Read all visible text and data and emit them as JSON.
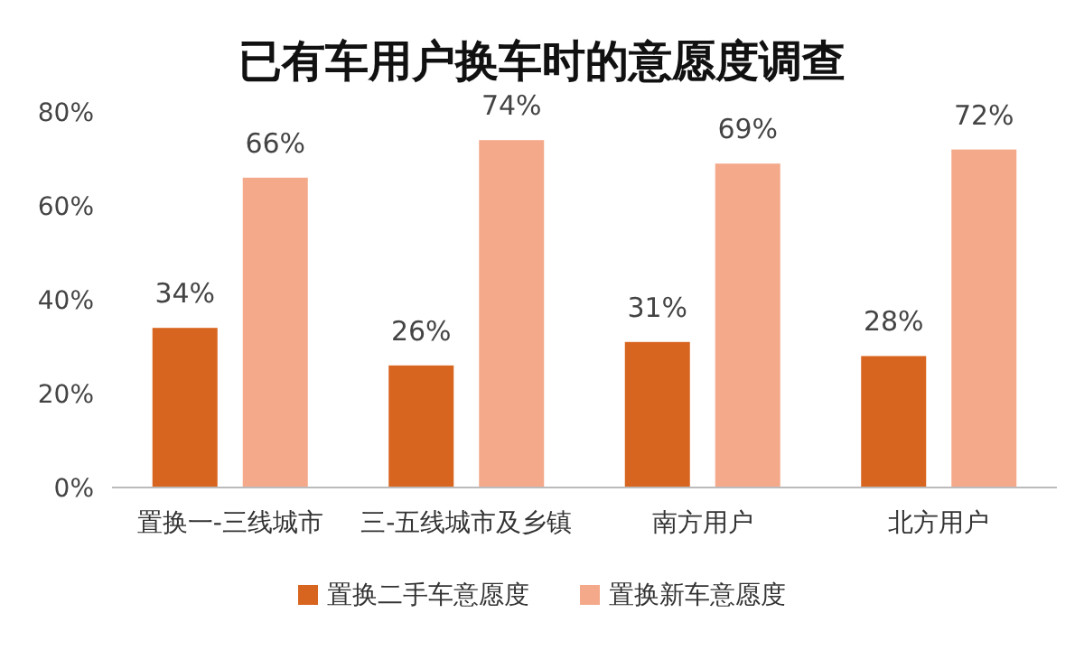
{
  "chart_data": {
    "type": "bar",
    "title": "已有车用户换车时的意愿度调查",
    "categories": [
      "置换一-三线城市",
      "三-五线城市及乡镇",
      "南方用户",
      "北方用户"
    ],
    "series": [
      {
        "name": "置换二手车意愿度",
        "color": "#d8651f",
        "values": [
          34,
          26,
          31,
          28
        ],
        "value_labels": [
          "34%",
          "26%",
          "31%",
          "28%"
        ]
      },
      {
        "name": "置换新车意愿度",
        "color": "#f4a98a",
        "values": [
          66,
          74,
          69,
          72
        ],
        "value_labels": [
          "66%",
          "74%",
          "69%",
          "72%"
        ]
      }
    ],
    "ylim": [
      0,
      80
    ],
    "yticks": [
      {
        "value": 0,
        "label": "0%"
      },
      {
        "value": 20,
        "label": "20%"
      },
      {
        "value": 40,
        "label": "40%"
      },
      {
        "value": 60,
        "label": "60%"
      },
      {
        "value": 80,
        "label": "80%"
      }
    ],
    "grid": false,
    "legend": "bottom"
  }
}
